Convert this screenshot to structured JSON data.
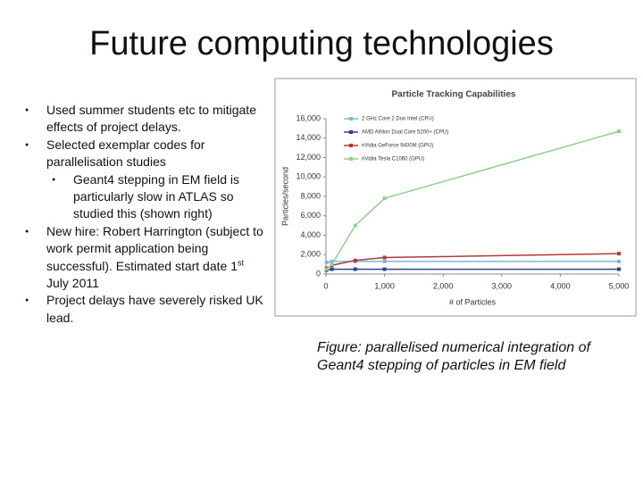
{
  "slide": {
    "title": "Future computing technologies",
    "bullets": [
      {
        "text": "Used summer students etc to mitigate effects of project delays."
      },
      {
        "text": "Selected exemplar codes for parallelisation studies",
        "sub": [
          "Geant4 stepping in EM field is particularly slow in ATLAS so studied this (shown right)"
        ]
      },
      {
        "text": "New hire: Robert Harrington (subject to work permit application being successful). Estimated start date 1",
        "sup": "st",
        "after": " July 2011"
      },
      {
        "text": "Project delays have severely risked UK lead."
      }
    ],
    "caption": "Figure: parallelised numerical integration of Geant4 stepping of particles in EM field"
  },
  "chart_data": {
    "type": "line",
    "title": "Particle Tracking Capabilities",
    "x_label": "# of Particles",
    "y_label": "Particles/second",
    "x": [
      10,
      100,
      500,
      1000,
      5000
    ],
    "series": [
      {
        "name": "2 GHz Core 2 Duo Intel (CPU)",
        "color": "#7fb6e0",
        "values": [
          1200,
          1300,
          1300,
          1300,
          1300
        ]
      },
      {
        "name": "AMD Athlon Dual Core 5200+ (CPU)",
        "color": "#2f3f8f",
        "values": [
          400,
          500,
          500,
          500,
          500
        ]
      },
      {
        "name": "nVidia GeForce 9400M (GPU)",
        "color": "#b03a3a",
        "values": [
          600,
          900,
          1400,
          1700,
          2100
        ]
      },
      {
        "name": "nVidia Tesla C1060 (GPU)",
        "color": "#8fd08f",
        "values": [
          500,
          1000,
          5000,
          7800,
          14700
        ]
      }
    ],
    "xlim": [
      0,
      5000
    ],
    "xticks": [
      0,
      {
        "value": 1000,
        "label": "1,000"
      },
      {
        "value": 2000,
        "label": "2,000"
      },
      {
        "value": 3000,
        "label": "3,000"
      },
      {
        "value": 4000,
        "label": "4,000"
      },
      {
        "value": 5000,
        "label": "5,000"
      }
    ],
    "ylim": [
      0,
      16000
    ],
    "yticks": [
      0,
      {
        "value": 2000,
        "label": "2,000"
      },
      {
        "value": 4000,
        "label": "4,000"
      },
      {
        "value": 6000,
        "label": "6,000"
      },
      {
        "value": 8000,
        "label": "8,000"
      },
      {
        "value": 10000,
        "label": "10,000"
      },
      {
        "value": 12000,
        "label": "12,000"
      },
      {
        "value": 14000,
        "label": "14,000"
      },
      {
        "value": 16000,
        "label": "16,000"
      }
    ],
    "grid": false,
    "legend": "upper-left"
  }
}
